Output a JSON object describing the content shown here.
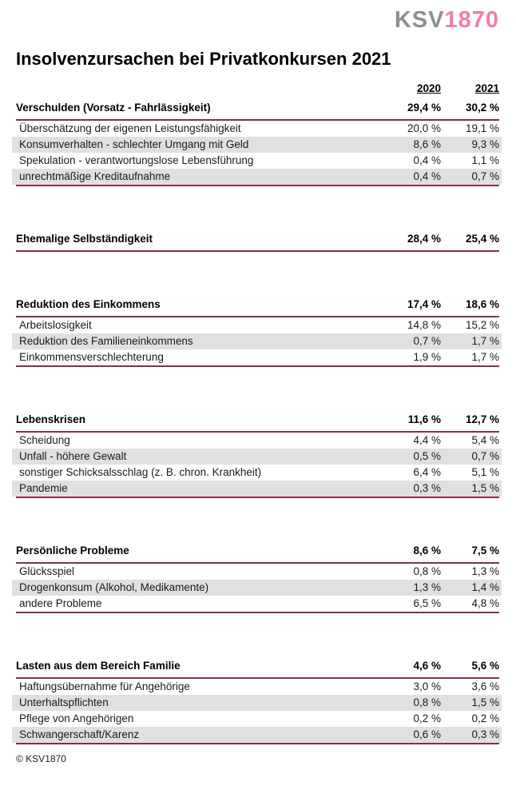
{
  "logo": {
    "gray": "KSV",
    "pink": "1870"
  },
  "title": "Insolvenzursachen bei Privatkonkursen 2021",
  "columns": [
    "2020",
    "2021"
  ],
  "sections": [
    {
      "label": "Verschulden (Vorsatz - Fahrlässigkeit)",
      "values": [
        "29,4 %",
        "30,2 %"
      ],
      "rows": [
        {
          "label": "Überschätzung der eigenen Leistungsfähigkeit",
          "values": [
            "20,0 %",
            "19,1 %"
          ]
        },
        {
          "label": "Konsumverhalten - schlechter Umgang mit Geld",
          "values": [
            "8,6 %",
            "9,3 %"
          ]
        },
        {
          "label": "Spekulation - verantwortungslose Lebensführung",
          "values": [
            "0,4 %",
            "1,1 %"
          ]
        },
        {
          "label": "unrechtmäßige Kreditaufnahme",
          "values": [
            "0,4 %",
            "0,7 %"
          ]
        }
      ]
    },
    {
      "label": "Ehemalige Selbständigkeit",
      "values": [
        "28,4 %",
        "25,4 %"
      ],
      "rows": []
    },
    {
      "label": "Reduktion des Einkommens",
      "values": [
        "17,4 %",
        "18,6 %"
      ],
      "rows": [
        {
          "label": "Arbeitslosigkeit",
          "values": [
            "14,8 %",
            "15,2 %"
          ]
        },
        {
          "label": "Reduktion des Familieneinkommens",
          "values": [
            "0,7 %",
            "1,7 %"
          ]
        },
        {
          "label": "Einkommensverschlechterung",
          "values": [
            "1,9 %",
            "1,7 %"
          ]
        }
      ]
    },
    {
      "label": "Lebenskrisen",
      "values": [
        "11,6 %",
        "12,7 %"
      ],
      "rows": [
        {
          "label": "Scheidung",
          "values": [
            "4,4 %",
            "5,4 %"
          ]
        },
        {
          "label": "Unfall - höhere Gewalt",
          "values": [
            "0,5 %",
            "0,7 %"
          ]
        },
        {
          "label": "sonstiger Schicksalsschlag (z. B. chron. Krankheit)",
          "values": [
            "6,4 %",
            "5,1 %"
          ]
        },
        {
          "label": "Pandemie",
          "values": [
            "0,3 %",
            "1,5 %"
          ]
        }
      ]
    },
    {
      "label": "Persönliche Probleme",
      "values": [
        "8,6 %",
        "7,5 %"
      ],
      "rows": [
        {
          "label": "Glücksspiel",
          "values": [
            "0,8 %",
            "1,3 %"
          ]
        },
        {
          "label": "Drogenkonsum (Alkohol, Medikamente)",
          "values": [
            "1,3 %",
            "1,4 %"
          ]
        },
        {
          "label": "andere Probleme",
          "values": [
            "6,5 %",
            "4,8 %"
          ]
        }
      ]
    },
    {
      "label": "Lasten aus dem Bereich Familie",
      "values": [
        "4,6 %",
        "5,6 %"
      ],
      "rows": [
        {
          "label": "Haftungsübernahme für Angehörige",
          "values": [
            "3,0 %",
            "3,6 %"
          ]
        },
        {
          "label": "Unterhaltspflichten",
          "values": [
            "0,8 %",
            "1,5 %"
          ]
        },
        {
          "label": "Pflege von Angehörigen",
          "values": [
            "0,2 %",
            "0,2 %"
          ]
        },
        {
          "label": "Schwangerschaft/Karenz",
          "values": [
            "0,6 %",
            "0,3 %"
          ]
        }
      ]
    }
  ],
  "footer": "© KSV1870",
  "colors": {
    "rule_line": "#8b2a52",
    "row_stripe": "#e0e0e0",
    "logo_gray": "#8d8e92",
    "logo_pink": "#f07da8"
  }
}
